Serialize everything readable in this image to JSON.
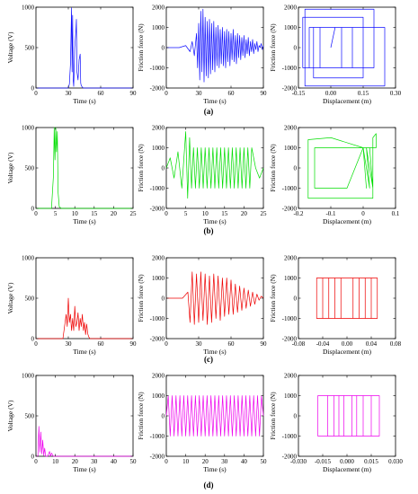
{
  "panel_labels": [
    "(a)",
    "(b)",
    "(c)",
    "(d)"
  ],
  "chart_data": [
    {
      "type": "line",
      "row": "(a)",
      "color": "#1010ff",
      "xlabel": "Time (s)",
      "ylabel": "Voltage (V)",
      "xlim": [
        0,
        90
      ],
      "ylim": [
        0,
        1000
      ],
      "xticks": [
        0,
        30,
        60,
        90
      ],
      "yticks": [
        0,
        500,
        1000
      ],
      "series": [
        {
          "x": [
            0,
            30,
            31,
            32,
            33,
            33.5,
            34,
            34.5,
            35,
            36,
            37,
            37.5,
            38,
            39,
            40,
            41,
            41.5,
            42,
            43,
            44,
            90
          ],
          "values": [
            0,
            0,
            50,
            300,
            990,
            200,
            900,
            100,
            20,
            500,
            700,
            850,
            200,
            100,
            350,
            420,
            60,
            30,
            10,
            0,
            0
          ]
        }
      ]
    },
    {
      "type": "line",
      "row": "(a)",
      "color": "#1010ff",
      "xlabel": "Time (s)",
      "ylabel": "Friction force (N)",
      "xlim": [
        0,
        90
      ],
      "ylim": [
        -2000,
        2000
      ],
      "xticks": [
        0,
        30,
        60,
        90
      ],
      "yticks": [
        -2000,
        -1000,
        0,
        1000,
        2000
      ],
      "series": [
        {
          "x": [
            0,
            12,
            18,
            22,
            24,
            26,
            28,
            29,
            30,
            31,
            32,
            33,
            34,
            35,
            36,
            37,
            38,
            39,
            40,
            41,
            42,
            43,
            44,
            45,
            46,
            47,
            48,
            49,
            50,
            51,
            52,
            53,
            54,
            55,
            56,
            57,
            58,
            59,
            60,
            61,
            62,
            63,
            64,
            65,
            66,
            67,
            68,
            69,
            70,
            71,
            72,
            73,
            74,
            75,
            76,
            77,
            78,
            79,
            80,
            81,
            82,
            83,
            84,
            85,
            86,
            87,
            88,
            89,
            90
          ],
          "values": [
            0,
            0,
            100,
            -200,
            300,
            -400,
            700,
            -1000,
            1200,
            -1600,
            1800,
            -1200,
            1900,
            -1700,
            1500,
            -1400,
            1300,
            -1500,
            1400,
            -1300,
            1200,
            -1100,
            1300,
            -1200,
            1000,
            -900,
            1100,
            -1000,
            900,
            -800,
            1000,
            -900,
            800,
            -1000,
            900,
            -700,
            800,
            -900,
            700,
            -600,
            900,
            -700,
            600,
            -800,
            700,
            -500,
            600,
            -600,
            500,
            -400,
            600,
            -500,
            400,
            -300,
            500,
            -400,
            300,
            -200,
            400,
            -300,
            200,
            -100,
            300,
            -200,
            100,
            0,
            200,
            -100,
            100
          ]
        }
      ]
    },
    {
      "type": "line",
      "row": "(a)",
      "color": "#1010ff",
      "xlabel": "Displacement (m)",
      "ylabel": "Friction force (N)",
      "xlim": [
        -0.15,
        0.3
      ],
      "ylim": [
        -2000,
        2000
      ],
      "xticks": [
        -0.15,
        0,
        0.15,
        0.3
      ],
      "yticks": [
        -2000,
        -1000,
        0,
        1000,
        2000
      ],
      "xtick_labels": [
        "-0.15",
        "0.00",
        "0.15",
        "0.30"
      ],
      "series": [
        {
          "x": [
            0,
            0.02,
            -0.1,
            -0.1,
            0.2,
            0.2,
            -0.12,
            -0.12,
            0.25,
            0.25,
            -0.08,
            -0.08,
            0.15,
            0.15,
            -0.13,
            -0.13,
            0.05,
            0.05,
            -0.05,
            -0.05,
            0.1,
            0.1,
            0.02
          ],
          "values": [
            0,
            1000,
            1000,
            -1000,
            -1000,
            1900,
            1900,
            -1900,
            -1900,
            1000,
            1000,
            -1500,
            -1500,
            1500,
            1500,
            -1000,
            -1000,
            1000,
            1000,
            -1000,
            -1000,
            1000,
            1000
          ]
        }
      ]
    },
    {
      "type": "line",
      "row": "(b)",
      "color": "#00dd00",
      "xlabel": "Time (s)",
      "ylabel": "Voltage (V)",
      "xlim": [
        0,
        25
      ],
      "ylim": [
        0,
        1000
      ],
      "xticks": [
        0,
        5,
        10,
        15,
        20,
        25
      ],
      "yticks": [
        0,
        500,
        1000
      ],
      "series": [
        {
          "x": [
            0,
            4,
            4.5,
            4.7,
            4.9,
            5.1,
            5.3,
            5.5,
            5.7,
            6.0,
            6.5,
            25
          ],
          "values": [
            0,
            0,
            400,
            1000,
            600,
            1000,
            700,
            950,
            200,
            20,
            0,
            0
          ]
        }
      ]
    },
    {
      "type": "line",
      "row": "(b)",
      "color": "#00dd00",
      "xlabel": "Time (s)",
      "ylabel": "Friction force (N)",
      "xlim": [
        0,
        25
      ],
      "ylim": [
        -2000,
        2000
      ],
      "xticks": [
        0,
        5,
        10,
        15,
        20,
        25
      ],
      "yticks": [
        -2000,
        -1000,
        0,
        1000,
        2000
      ],
      "series": [
        {
          "x": [
            0,
            1,
            2,
            3,
            4,
            5,
            5.5,
            6,
            6.5,
            7,
            7.5,
            8,
            8.5,
            9,
            9.5,
            10,
            10.5,
            11,
            11.5,
            12,
            12.5,
            13,
            13.5,
            14,
            14.5,
            15,
            15.5,
            16,
            16.5,
            17,
            17.5,
            18,
            18.5,
            19,
            19.5,
            20,
            20.5,
            21,
            21.5,
            22,
            23,
            24,
            25
          ],
          "values": [
            0,
            500,
            -500,
            800,
            -1000,
            1800,
            -1500,
            1500,
            -1000,
            1000,
            -1000,
            1000,
            -1000,
            1000,
            -1000,
            1000,
            -1000,
            1000,
            -1000,
            1000,
            -1000,
            1000,
            -1000,
            1000,
            -1000,
            1000,
            -1000,
            1000,
            -1000,
            1000,
            -1000,
            1000,
            -1000,
            1000,
            -1000,
            1000,
            -1000,
            1000,
            -1000,
            1000,
            0,
            -500,
            0
          ]
        }
      ]
    },
    {
      "type": "line",
      "row": "(b)",
      "color": "#00dd00",
      "xlabel": "Displacement (m)",
      "ylabel": "Friction force (N)",
      "xlim": [
        -0.2,
        0.1
      ],
      "ylim": [
        -2000,
        2000
      ],
      "xticks": [
        -0.2,
        -0.1,
        0,
        0.1
      ],
      "yticks": [
        -2000,
        -1000,
        0,
        1000,
        2000
      ],
      "series": [
        {
          "x": [
            0,
            -0.1,
            -0.17,
            -0.17,
            -0.1,
            0.03,
            0.03,
            0.04,
            0.04,
            -0.1,
            -0.15,
            -0.15,
            -0.05,
            0.0,
            0.01,
            0.0,
            0.02,
            0.01,
            0.03,
            0.02,
            0.0
          ],
          "values": [
            1000,
            1500,
            1400,
            -1500,
            -1500,
            -1500,
            1500,
            1700,
            1000,
            1000,
            1000,
            -1000,
            -1000,
            1000,
            -1000,
            1000,
            -1000,
            1000,
            -1000,
            1000,
            1000
          ]
        }
      ]
    },
    {
      "type": "line",
      "row": "(c)",
      "color": "#ee0000",
      "xlabel": "Time (s)",
      "ylabel": "Voltage (V)",
      "xlim": [
        0,
        90
      ],
      "ylim": [
        0,
        1000
      ],
      "xticks": [
        0,
        30,
        60,
        90
      ],
      "yticks": [
        0,
        500,
        1000
      ],
      "series": [
        {
          "x": [
            0,
            25,
            26,
            27,
            28,
            29,
            30,
            31,
            32,
            33,
            34,
            35,
            36,
            37,
            38,
            39,
            40,
            41,
            42,
            43,
            44,
            45,
            46,
            47,
            48,
            49,
            50,
            90
          ],
          "values": [
            0,
            0,
            100,
            200,
            300,
            150,
            500,
            200,
            300,
            100,
            250,
            100,
            400,
            150,
            200,
            320,
            100,
            250,
            150,
            300,
            100,
            200,
            50,
            180,
            60,
            20,
            0,
            0
          ]
        }
      ]
    },
    {
      "type": "line",
      "row": "(c)",
      "color": "#ee0000",
      "xlabel": "Time (s)",
      "ylabel": "Friction force (N)",
      "xlim": [
        0,
        90
      ],
      "ylim": [
        -2000,
        2000
      ],
      "xticks": [
        0,
        30,
        60,
        90
      ],
      "yticks": [
        -2000,
        -1000,
        0,
        1000,
        2000
      ],
      "series": [
        {
          "x": [
            0,
            15,
            20,
            22,
            24,
            26,
            28,
            30,
            32,
            34,
            36,
            38,
            40,
            42,
            44,
            46,
            48,
            50,
            52,
            54,
            56,
            58,
            60,
            62,
            64,
            66,
            68,
            70,
            72,
            74,
            76,
            78,
            80,
            82,
            84,
            86,
            88,
            90
          ],
          "values": [
            0,
            0,
            300,
            -1200,
            1300,
            -1300,
            1200,
            -1200,
            1300,
            -1100,
            1200,
            -1300,
            1100,
            -1200,
            1200,
            -1000,
            1100,
            -1100,
            1000,
            -900,
            1000,
            -800,
            900,
            -800,
            700,
            -700,
            600,
            -600,
            500,
            -500,
            400,
            -400,
            300,
            -300,
            200,
            -100,
            100,
            0
          ]
        }
      ]
    },
    {
      "type": "line",
      "row": "(c)",
      "color": "#ee0000",
      "xlabel": "Displacement (m)",
      "ylabel": "Friction force (N)",
      "xlim": [
        -0.08,
        0.08
      ],
      "ylim": [
        -2000,
        2000
      ],
      "xticks": [
        -0.08,
        -0.04,
        0,
        0.04,
        0.08
      ],
      "yticks": [
        -2000,
        -1000,
        0,
        1000,
        2000
      ],
      "xtick_labels": [
        "-0.08",
        "-0.04",
        "0.00",
        "0.04",
        "0.08"
      ],
      "series": [
        {
          "x": [
            0,
            -0.05,
            -0.05,
            0.05,
            0.05,
            -0.04,
            -0.04,
            0.04,
            0.04,
            -0.03,
            -0.03,
            0.03,
            0.03,
            -0.02,
            -0.02,
            0.02,
            0.02,
            -0.01,
            -0.01,
            0.01,
            0.01,
            0
          ],
          "values": [
            1000,
            1000,
            -1000,
            -1000,
            1000,
            1000,
            -1000,
            -1000,
            1000,
            1000,
            -1000,
            -1000,
            1000,
            1000,
            -1000,
            -1000,
            1000,
            1000,
            -1000,
            -1000,
            1000,
            1000
          ]
        }
      ]
    },
    {
      "type": "line",
      "row": "(d)",
      "color": "#ee00ee",
      "xlabel": "Time (s)",
      "ylabel": "Voltage (V)",
      "xlim": [
        0,
        50
      ],
      "ylim": [
        0,
        1000
      ],
      "xticks": [
        0,
        10,
        20,
        30,
        40,
        50
      ],
      "yticks": [
        0,
        500,
        1000
      ],
      "series": [
        {
          "x": [
            0,
            1,
            1.5,
            2,
            2.5,
            3,
            3.5,
            4,
            4.5,
            5,
            6,
            7,
            7.5,
            8,
            9,
            50
          ],
          "values": [
            0,
            0,
            370,
            50,
            300,
            30,
            200,
            10,
            100,
            0,
            0,
            60,
            0,
            40,
            0,
            0
          ]
        }
      ]
    },
    {
      "type": "line",
      "row": "(d)",
      "color": "#ee00ee",
      "xlabel": "Time (s)",
      "ylabel": "Friction force (N)",
      "xlim": [
        0,
        50
      ],
      "ylim": [
        -2000,
        2000
      ],
      "xticks": [
        0,
        10,
        20,
        30,
        40,
        50
      ],
      "yticks": [
        -2000,
        -1000,
        0,
        1000,
        2000
      ],
      "series": [
        {
          "x": [
            0,
            1,
            2,
            3,
            4,
            5,
            6,
            7,
            8,
            9,
            10,
            11,
            12,
            13,
            14,
            15,
            16,
            17,
            18,
            19,
            20,
            21,
            22,
            23,
            24,
            25,
            26,
            27,
            28,
            29,
            30,
            31,
            32,
            33,
            34,
            35,
            36,
            37,
            38,
            39,
            40,
            41,
            42,
            43,
            44,
            45,
            46,
            47,
            48,
            49,
            50
          ],
          "values": [
            0,
            1000,
            -1000,
            1000,
            -1000,
            1000,
            -1000,
            1000,
            -1000,
            1000,
            -1000,
            1000,
            -1000,
            1000,
            -1000,
            1000,
            -1000,
            1000,
            -1000,
            1000,
            -1000,
            1000,
            -1000,
            1000,
            -1000,
            1000,
            -1000,
            1000,
            -1000,
            1000,
            -1000,
            1000,
            -1000,
            1000,
            -1000,
            1000,
            -1000,
            1000,
            -1000,
            1000,
            -1000,
            1000,
            -1000,
            1000,
            -1000,
            1000,
            -1000,
            1000,
            -1000,
            1000,
            0
          ]
        }
      ]
    },
    {
      "type": "line",
      "row": "(d)",
      "color": "#ee00ee",
      "xlabel": "Displacement (m)",
      "ylabel": "Friction force (N)",
      "xlim": [
        -0.03,
        0.03
      ],
      "ylim": [
        -2000,
        2000
      ],
      "xticks": [
        -0.03,
        -0.015,
        0,
        0.015,
        0.03
      ],
      "yticks": [
        -2000,
        -1000,
        0,
        1000,
        2000
      ],
      "xtick_labels": [
        "-0.030",
        "-0.015",
        "0.000",
        "0.015",
        "0.030"
      ],
      "series": [
        {
          "x": [
            0,
            -0.018,
            -0.018,
            0.02,
            0.02,
            -0.012,
            -0.012,
            0.015,
            0.015,
            -0.008,
            -0.008,
            0.01,
            0.01,
            -0.005,
            -0.005,
            0.006,
            0.006,
            -0.002,
            -0.002,
            0.003,
            0.003,
            0
          ],
          "values": [
            1000,
            1000,
            -1000,
            -1000,
            1000,
            1000,
            -1000,
            -1000,
            1000,
            1000,
            -1000,
            -1000,
            1000,
            1000,
            -1000,
            -1000,
            1000,
            1000,
            -1000,
            -1000,
            1000,
            1000
          ]
        }
      ]
    }
  ]
}
